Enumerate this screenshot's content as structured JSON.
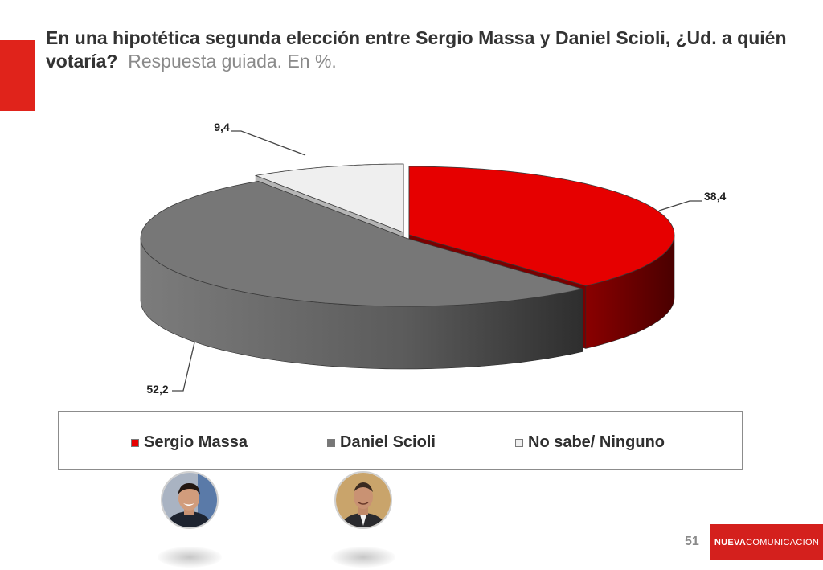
{
  "slide": {
    "title": "En una hipotética segunda elección entre Sergio Massa y Daniel Scioli, ¿Ud. a quién votaría?",
    "subtitle": "Respuesta guiada. En %.",
    "page_number": "51",
    "brand": {
      "part1": "NUEVA",
      "part2": "COMUNICACION"
    }
  },
  "chart_data": {
    "type": "pie",
    "style": "3d-exploded",
    "title": "",
    "slices": [
      {
        "name": "Sergio Massa",
        "value": 38.4,
        "label": "38,4",
        "color": "#e60000",
        "side": "#7a0000"
      },
      {
        "name": "Daniel Scioli",
        "value": 52.2,
        "label": "52,2",
        "color": "#777777",
        "side": "#3f3f3f"
      },
      {
        "name": "No sabe/ Ninguno",
        "value": 9.4,
        "label": "9,4",
        "color": "#efefef",
        "side": "#b5b5b5"
      }
    ],
    "legend_position": "bottom"
  },
  "legend": {
    "items": [
      {
        "label": "Sergio Massa",
        "color": "#e60000"
      },
      {
        "label": "Daniel Scioli",
        "color": "#777777"
      },
      {
        "label": "No sabe/ Ninguno",
        "color": "#efefef"
      }
    ]
  },
  "photos": [
    {
      "name": "Sergio Massa"
    },
    {
      "name": "Daniel Scioli"
    }
  ]
}
